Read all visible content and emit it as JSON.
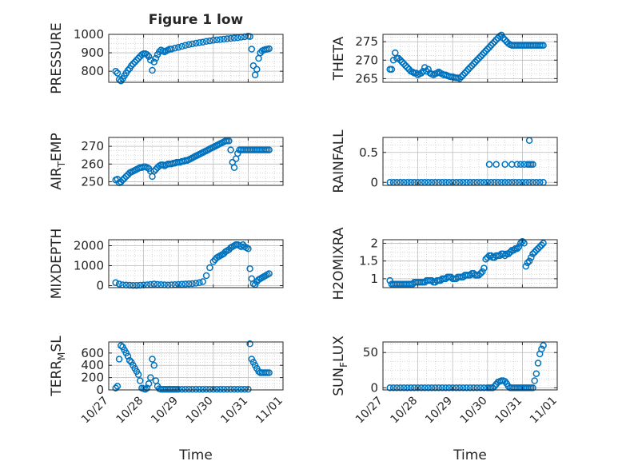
{
  "figure": {
    "title": "Figure 1 low",
    "xlabel": "Time",
    "x_ticks": [
      "10/27",
      "10/28",
      "10/29",
      "10/30",
      "10/31",
      "11/01"
    ],
    "marker_color": "#0072BD"
  },
  "chart_data": [
    {
      "type": "scatter",
      "ylabel": "PRESSURE",
      "xlim": [
        0,
        5
      ],
      "ylim": [
        740,
        1000
      ],
      "y_ticks": [
        800,
        900,
        1000
      ],
      "grid": true,
      "x": [
        0.2,
        0.25,
        0.3,
        0.35,
        0.4,
        0.45,
        0.5,
        0.55,
        0.6,
        0.65,
        0.7,
        0.75,
        0.8,
        0.85,
        0.9,
        0.95,
        1.0,
        1.05,
        1.1,
        1.15,
        1.2,
        1.25,
        1.3,
        1.35,
        1.4,
        1.45,
        1.5,
        1.55,
        1.6,
        1.65,
        1.7,
        1.75,
        1.8,
        1.9,
        2.0,
        2.1,
        2.2,
        2.3,
        2.4,
        2.5,
        2.6,
        2.7,
        2.8,
        2.9,
        3.0,
        3.1,
        3.2,
        3.3,
        3.4,
        3.5,
        3.6,
        3.7,
        3.8,
        3.9,
        4.0,
        4.05,
        4.1,
        4.15,
        4.2,
        4.25,
        4.3,
        4.35,
        4.4,
        4.45,
        4.5,
        4.55,
        4.6
      ],
      "y": [
        800,
        790,
        755,
        748,
        760,
        775,
        790,
        805,
        815,
        830,
        840,
        850,
        860,
        870,
        880,
        890,
        895,
        895,
        890,
        880,
        860,
        805,
        850,
        870,
        890,
        905,
        915,
        910,
        905,
        910,
        915,
        920,
        920,
        925,
        930,
        935,
        940,
        945,
        948,
        952,
        955,
        958,
        962,
        965,
        968,
        970,
        972,
        974,
        976,
        978,
        980,
        982,
        985,
        987,
        990,
        988,
        920,
        830,
        780,
        810,
        870,
        900,
        910,
        915,
        918,
        920,
        922
      ]
    },
    {
      "type": "scatter",
      "ylabel": "THETA",
      "xlim": [
        0,
        5
      ],
      "ylim": [
        264,
        277
      ],
      "y_ticks": [
        265,
        270,
        275
      ],
      "grid": true,
      "x": [
        0.2,
        0.25,
        0.3,
        0.35,
        0.4,
        0.45,
        0.5,
        0.55,
        0.6,
        0.65,
        0.7,
        0.75,
        0.8,
        0.85,
        0.9,
        0.95,
        1.0,
        1.05,
        1.1,
        1.15,
        1.2,
        1.25,
        1.3,
        1.35,
        1.4,
        1.45,
        1.5,
        1.55,
        1.6,
        1.65,
        1.7,
        1.75,
        1.8,
        1.85,
        1.9,
        1.95,
        2.0,
        2.05,
        2.1,
        2.15,
        2.2,
        2.25,
        2.3,
        2.35,
        2.4,
        2.45,
        2.5,
        2.55,
        2.6,
        2.65,
        2.7,
        2.75,
        2.8,
        2.85,
        2.9,
        2.95,
        3.0,
        3.05,
        3.1,
        3.15,
        3.2,
        3.25,
        3.3,
        3.35,
        3.4,
        3.45,
        3.5,
        3.55,
        3.6,
        3.65,
        3.7,
        3.75,
        3.8,
        3.85,
        3.9,
        3.95,
        4.0,
        4.05,
        4.1,
        4.15,
        4.2,
        4.25,
        4.3,
        4.35,
        4.4,
        4.45,
        4.5,
        4.55,
        4.6
      ],
      "y": [
        267.5,
        267.5,
        270,
        272,
        270.5,
        270.5,
        270,
        269.5,
        269,
        268.5,
        268,
        267.5,
        267,
        266.8,
        266.5,
        266.5,
        266,
        266.3,
        266.5,
        267,
        268,
        267,
        267.5,
        266.5,
        266.2,
        266,
        266.3,
        266.5,
        266.8,
        266.5,
        266.2,
        266,
        266,
        265.8,
        265.6,
        265.5,
        265.5,
        265.3,
        265.2,
        265.2,
        265,
        265.5,
        266,
        266.5,
        267,
        267.5,
        268,
        268.5,
        269,
        269.5,
        270,
        270.5,
        271,
        271.5,
        272,
        272.5,
        273,
        273.5,
        274,
        274.5,
        275,
        275.5,
        276,
        276.5,
        276.8,
        276,
        275.5,
        275,
        274.5,
        274.2,
        274,
        274,
        274,
        274,
        274,
        274,
        274,
        274,
        274,
        274,
        274,
        274,
        274,
        274,
        274,
        274,
        274,
        274,
        274
      ]
    },
    {
      "type": "scatter",
      "ylabel": "AIR_TEMP",
      "xlim": [
        0,
        5
      ],
      "ylim": [
        248,
        275
      ],
      "y_ticks": [
        250,
        260,
        270
      ],
      "grid": true,
      "x": [
        0.2,
        0.25,
        0.3,
        0.35,
        0.4,
        0.45,
        0.5,
        0.55,
        0.6,
        0.65,
        0.7,
        0.75,
        0.8,
        0.85,
        0.9,
        0.95,
        1.0,
        1.05,
        1.1,
        1.15,
        1.2,
        1.25,
        1.3,
        1.35,
        1.4,
        1.45,
        1.5,
        1.55,
        1.6,
        1.65,
        1.7,
        1.75,
        1.8,
        1.85,
        1.9,
        1.95,
        2.0,
        2.05,
        2.1,
        2.15,
        2.2,
        2.25,
        2.3,
        2.35,
        2.4,
        2.45,
        2.5,
        2.55,
        2.6,
        2.65,
        2.7,
        2.75,
        2.8,
        2.85,
        2.9,
        2.95,
        3.0,
        3.05,
        3.1,
        3.15,
        3.2,
        3.25,
        3.3,
        3.35,
        3.4,
        3.45,
        3.5,
        3.55,
        3.6,
        3.65,
        3.7,
        3.75,
        3.8,
        3.85,
        3.9,
        3.95,
        4.0,
        4.05,
        4.1,
        4.15,
        4.2,
        4.25,
        4.3,
        4.35,
        4.4,
        4.45,
        4.5,
        4.55,
        4.6
      ],
      "y": [
        251,
        251.5,
        249.5,
        250,
        251,
        252,
        253,
        254,
        255,
        255.5,
        256,
        256.5,
        257,
        257.5,
        258,
        258,
        258.5,
        258.5,
        258,
        257.5,
        256,
        253,
        256,
        257,
        258,
        259,
        259.5,
        259.5,
        259,
        259.5,
        260,
        260,
        260,
        260.5,
        260.5,
        261,
        261,
        261,
        261.5,
        261.5,
        262,
        262,
        262.5,
        263,
        263.5,
        264,
        264.5,
        265,
        265.5,
        266,
        266.5,
        267,
        267.5,
        268,
        268.5,
        269,
        269.5,
        270,
        270.5,
        271,
        271.5,
        272,
        272.5,
        273,
        273,
        273,
        268,
        261,
        258,
        263,
        266,
        268,
        268,
        268,
        268,
        268,
        268,
        268,
        268,
        268,
        268,
        268,
        268,
        268,
        268,
        268,
        268,
        268,
        268
      ]
    },
    {
      "type": "scatter",
      "ylabel": "RAINFALL",
      "xlim": [
        0,
        5
      ],
      "ylim": [
        -0.05,
        0.75
      ],
      "y_ticks": [
        0,
        0.5
      ],
      "grid": true,
      "x": [
        0.2,
        0.3,
        0.4,
        0.5,
        0.6,
        0.7,
        0.8,
        0.9,
        1.0,
        1.1,
        1.2,
        1.3,
        1.4,
        1.5,
        1.6,
        1.7,
        1.8,
        1.9,
        2.0,
        2.1,
        2.2,
        2.3,
        2.4,
        2.5,
        2.6,
        2.7,
        2.8,
        2.9,
        3.0,
        3.1,
        3.2,
        3.3,
        3.4,
        3.5,
        3.6,
        3.7,
        3.8,
        3.9,
        4.0,
        4.1,
        4.2,
        4.3,
        4.4,
        4.5,
        4.6,
        3.05,
        3.25,
        3.5,
        3.7,
        3.85,
        3.95,
        4.05,
        4.15,
        4.2,
        4.25,
        4.3,
        4.2
      ],
      "y": [
        0,
        0,
        0,
        0,
        0,
        0,
        0,
        0,
        0,
        0,
        0,
        0,
        0,
        0,
        0,
        0,
        0,
        0,
        0,
        0,
        0,
        0,
        0,
        0,
        0,
        0,
        0,
        0,
        0,
        0,
        0,
        0,
        0,
        0,
        0,
        0,
        0,
        0,
        0,
        0,
        0,
        0,
        0,
        0,
        0,
        0.3,
        0.3,
        0.3,
        0.3,
        0.3,
        0.3,
        0.3,
        0.3,
        0.3,
        0.3,
        0.3,
        0.7
      ]
    },
    {
      "type": "scatter",
      "ylabel": "MIXDEPTH",
      "xlim": [
        0,
        5
      ],
      "ylim": [
        -100,
        2300
      ],
      "y_ticks": [
        0,
        1000,
        2000
      ],
      "grid": true,
      "x": [
        0.2,
        0.3,
        0.4,
        0.5,
        0.6,
        0.7,
        0.8,
        0.9,
        1.0,
        1.1,
        1.2,
        1.3,
        1.4,
        1.5,
        1.6,
        1.7,
        1.8,
        1.9,
        2.0,
        2.1,
        2.2,
        2.3,
        2.4,
        2.5,
        2.6,
        2.7,
        2.8,
        2.9,
        3.0,
        3.05,
        3.1,
        3.15,
        3.2,
        3.25,
        3.3,
        3.35,
        3.4,
        3.45,
        3.5,
        3.55,
        3.6,
        3.65,
        3.7,
        3.75,
        3.8,
        3.85,
        3.9,
        3.95,
        4.0,
        4.05,
        4.1,
        4.15,
        4.2,
        4.25,
        4.3,
        4.35,
        4.4,
        4.45,
        4.5,
        4.55,
        4.6
      ],
      "y": [
        150,
        80,
        40,
        30,
        20,
        10,
        10,
        20,
        30,
        40,
        60,
        80,
        60,
        50,
        40,
        30,
        40,
        50,
        60,
        70,
        80,
        90,
        100,
        120,
        150,
        200,
        500,
        900,
        1200,
        1300,
        1400,
        1450,
        1500,
        1550,
        1600,
        1700,
        1750,
        1800,
        1900,
        1950,
        2000,
        2050,
        2050,
        2000,
        1950,
        2050,
        1950,
        1900,
        1850,
        850,
        350,
        100,
        50,
        200,
        300,
        350,
        400,
        450,
        500,
        550,
        600
      ]
    },
    {
      "type": "scatter",
      "ylabel": "H2OMIXRA",
      "xlim": [
        0,
        5
      ],
      "ylim": [
        0.75,
        2.1
      ],
      "y_ticks": [
        1,
        1.5,
        2
      ],
      "grid": true,
      "x": [
        0.2,
        0.25,
        0.3,
        0.35,
        0.4,
        0.45,
        0.5,
        0.55,
        0.6,
        0.65,
        0.7,
        0.75,
        0.8,
        0.85,
        0.9,
        0.95,
        1.0,
        1.05,
        1.1,
        1.15,
        1.2,
        1.25,
        1.3,
        1.35,
        1.4,
        1.45,
        1.5,
        1.55,
        1.6,
        1.65,
        1.7,
        1.75,
        1.8,
        1.85,
        1.9,
        1.95,
        2.0,
        2.05,
        2.1,
        2.15,
        2.2,
        2.25,
        2.3,
        2.35,
        2.4,
        2.45,
        2.5,
        2.55,
        2.6,
        2.65,
        2.7,
        2.75,
        2.8,
        2.85,
        2.9,
        2.95,
        3.0,
        3.05,
        3.1,
        3.15,
        3.2,
        3.25,
        3.3,
        3.35,
        3.4,
        3.45,
        3.5,
        3.55,
        3.6,
        3.65,
        3.7,
        3.75,
        3.8,
        3.85,
        3.9,
        3.95,
        4.0,
        4.05,
        4.1,
        4.15,
        4.2,
        4.25,
        4.3,
        4.35,
        4.4,
        4.45,
        4.5,
        4.55,
        4.6
      ],
      "y": [
        0.95,
        0.85,
        0.85,
        0.85,
        0.85,
        0.85,
        0.85,
        0.85,
        0.85,
        0.85,
        0.85,
        0.85,
        0.85,
        0.85,
        0.9,
        0.9,
        0.9,
        0.9,
        0.9,
        0.9,
        0.9,
        0.95,
        0.95,
        0.95,
        0.95,
        0.9,
        0.9,
        0.95,
        0.95,
        0.95,
        1.0,
        1.0,
        1.0,
        1.05,
        1.05,
        1.05,
        1.0,
        1.0,
        1.0,
        1.05,
        1.05,
        1.05,
        1.05,
        1.1,
        1.1,
        1.1,
        1.1,
        1.15,
        1.15,
        1.1,
        1.1,
        1.1,
        1.15,
        1.2,
        1.3,
        1.55,
        1.6,
        1.65,
        1.65,
        1.6,
        1.6,
        1.65,
        1.65,
        1.65,
        1.7,
        1.7,
        1.65,
        1.7,
        1.7,
        1.75,
        1.8,
        1.8,
        1.85,
        1.85,
        1.9,
        2.0,
        2.05,
        2.0,
        1.35,
        1.45,
        1.5,
        1.6,
        1.7,
        1.75,
        1.8,
        1.85,
        1.9,
        1.95,
        2.0
      ]
    },
    {
      "type": "scatter",
      "ylabel": "TERR_MSL",
      "xlim": [
        0,
        5
      ],
      "ylim": [
        0,
        780
      ],
      "y_ticks": [
        0,
        200,
        400,
        600
      ],
      "grid": true,
      "x": [
        0.2,
        0.25,
        0.3,
        0.35,
        0.4,
        0.45,
        0.5,
        0.55,
        0.6,
        0.65,
        0.7,
        0.75,
        0.8,
        0.85,
        0.9,
        0.95,
        1.0,
        1.05,
        1.1,
        1.15,
        1.2,
        1.25,
        1.3,
        1.35,
        1.4,
        1.45,
        1.5,
        1.55,
        1.6,
        1.65,
        1.7,
        1.75,
        1.8,
        1.85,
        1.9,
        1.95,
        2.0,
        2.1,
        2.2,
        2.3,
        2.4,
        2.5,
        2.6,
        2.7,
        2.8,
        2.9,
        3.0,
        3.1,
        3.2,
        3.3,
        3.4,
        3.5,
        3.6,
        3.7,
        3.8,
        3.9,
        4.0,
        4.05,
        4.1,
        4.15,
        4.2,
        4.25,
        4.3,
        4.35,
        4.4,
        4.45,
        4.5,
        4.55,
        4.6
      ],
      "y": [
        30,
        60,
        500,
        720,
        700,
        650,
        600,
        550,
        480,
        450,
        400,
        350,
        300,
        250,
        150,
        30,
        20,
        10,
        30,
        100,
        200,
        500,
        400,
        150,
        60,
        20,
        10,
        10,
        10,
        10,
        10,
        10,
        10,
        10,
        10,
        10,
        10,
        10,
        10,
        10,
        10,
        10,
        10,
        10,
        10,
        10,
        10,
        10,
        10,
        10,
        10,
        10,
        10,
        10,
        10,
        10,
        10,
        750,
        500,
        450,
        400,
        350,
        300,
        280,
        280,
        280,
        280,
        280,
        280
      ]
    },
    {
      "type": "scatter",
      "ylabel": "SUN_FLUX",
      "xlim": [
        0,
        5
      ],
      "ylim": [
        -3,
        65
      ],
      "y_ticks": [
        0,
        50
      ],
      "grid": true,
      "x": [
        0.2,
        0.3,
        0.4,
        0.5,
        0.6,
        0.7,
        0.8,
        0.9,
        1.0,
        1.1,
        1.2,
        1.3,
        1.4,
        1.5,
        1.6,
        1.7,
        1.8,
        1.9,
        2.0,
        2.1,
        2.2,
        2.3,
        2.4,
        2.5,
        2.6,
        2.7,
        2.8,
        2.9,
        3.0,
        3.05,
        3.1,
        3.15,
        3.2,
        3.25,
        3.3,
        3.35,
        3.4,
        3.45,
        3.5,
        3.55,
        3.6,
        3.65,
        3.7,
        3.75,
        3.8,
        3.85,
        3.9,
        3.95,
        4.0,
        4.05,
        4.1,
        4.15,
        4.2,
        4.25,
        4.3,
        4.35,
        4.4,
        4.45,
        4.5,
        4.55,
        4.6
      ],
      "y": [
        0,
        0,
        0,
        0,
        0,
        0,
        0,
        0,
        0,
        0,
        0,
        0,
        0,
        0,
        0,
        0,
        0,
        0,
        0,
        0,
        0,
        0,
        0,
        0,
        0,
        0,
        0,
        0,
        0,
        0,
        0,
        0,
        2,
        5,
        8,
        9,
        10,
        10,
        9,
        6,
        2,
        0,
        0,
        0,
        0,
        0,
        0,
        0,
        0,
        0,
        0,
        0,
        0,
        0,
        0,
        10,
        20,
        35,
        48,
        55,
        60
      ]
    }
  ]
}
